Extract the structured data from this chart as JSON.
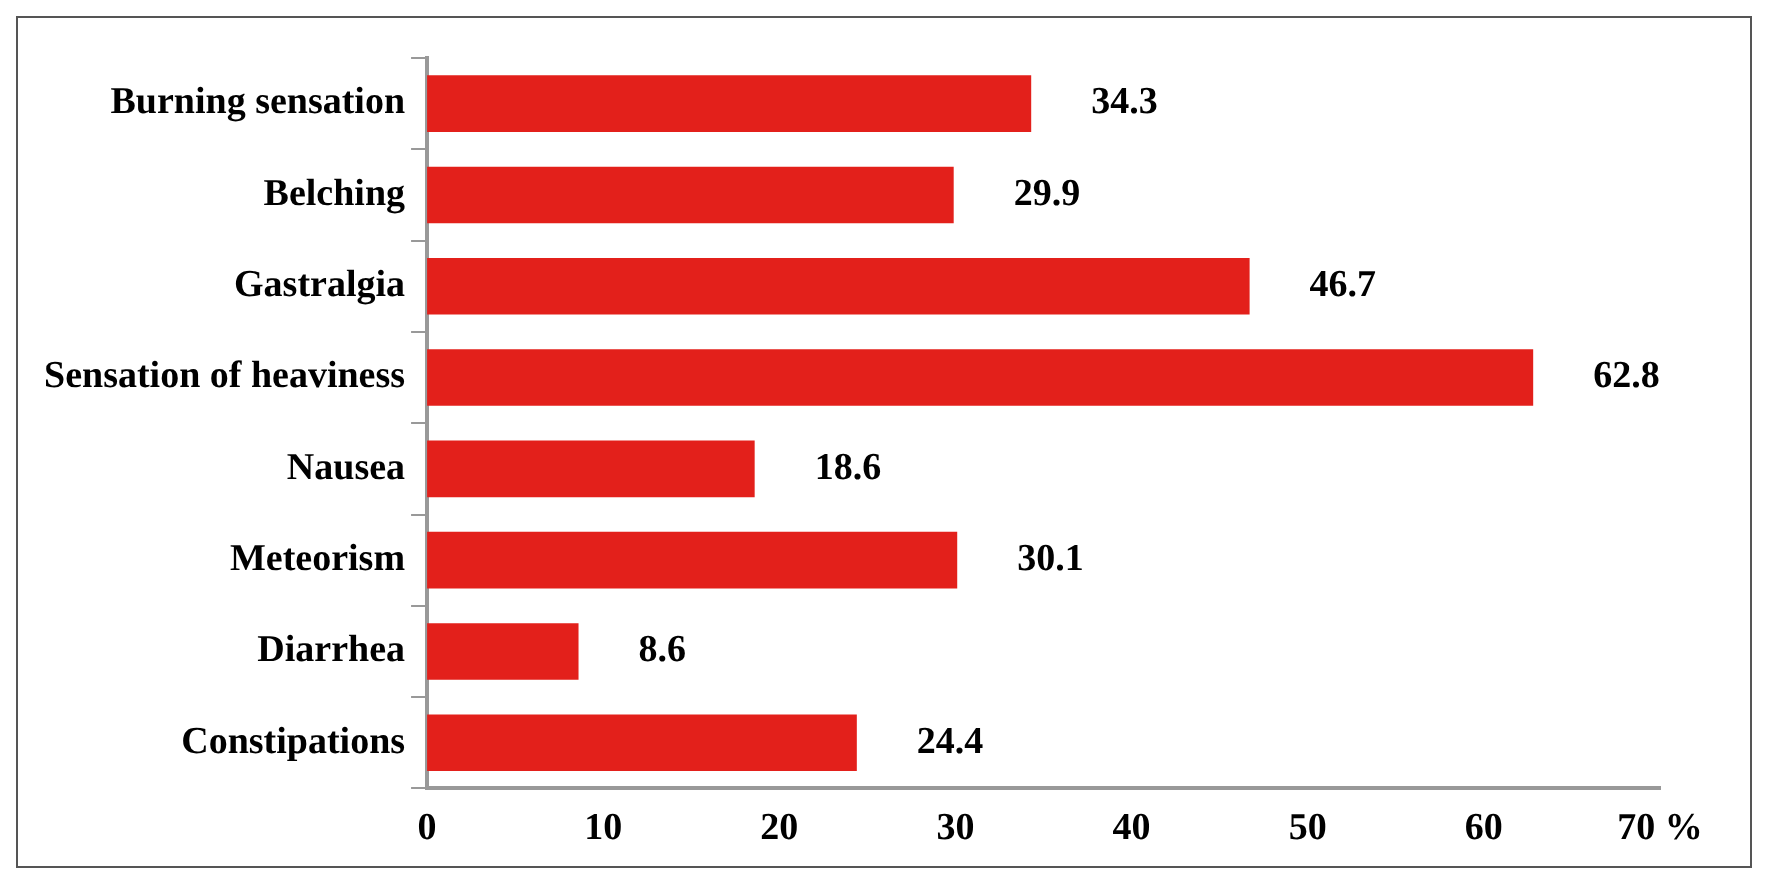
{
  "chart_data": {
    "type": "bar",
    "orientation": "horizontal",
    "categories": [
      "Burning sensation",
      "Belching",
      "Gastralgia",
      "Sensation of heaviness",
      "Nausea",
      "Meteorism",
      "Diarrhea",
      "Constipations"
    ],
    "values": [
      34.3,
      29.9,
      46.7,
      62.8,
      18.6,
      30.1,
      8.6,
      24.4
    ],
    "color": "#e3201b",
    "xlim": [
      0,
      70
    ],
    "xticks": [
      0,
      10,
      20,
      30,
      40,
      50,
      60,
      {
        "value": 70,
        "label": "70 %"
      }
    ],
    "data_labels": true,
    "grid": false,
    "legend": false
  }
}
